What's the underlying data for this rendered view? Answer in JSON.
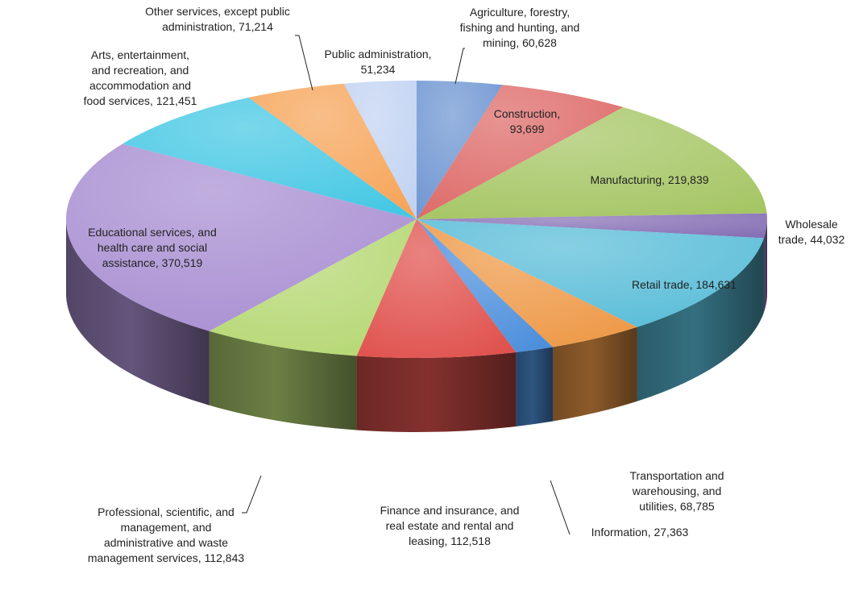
{
  "chart_data": {
    "type": "pie",
    "style": "3d",
    "title": "",
    "start_category": "Agriculture, forestry, fishing and hunting, and mining",
    "direction": "clockwise",
    "slices": [
      {
        "category": "Agriculture, forestry, fishing and hunting, and mining",
        "value": 60628,
        "label_lines": [
          "Agriculture, forestry,",
          "fishing and hunting, and",
          "mining, 60,628"
        ],
        "color": "#6f96d2"
      },
      {
        "category": "Construction",
        "value": 93699,
        "label_lines": [
          "Construction,",
          "93,699"
        ],
        "color": "#dd6a68"
      },
      {
        "category": "Manufacturing",
        "value": 219839,
        "label_lines": [
          "Manufacturing, 219,839"
        ],
        "color": "#a6c665"
      },
      {
        "category": "Wholesale trade",
        "value": 44032,
        "label_lines": [
          "Wholesale",
          "trade, 44,032"
        ],
        "color": "#8670b5"
      },
      {
        "category": "Retail trade",
        "value": 184631,
        "label_lines": [
          "Retail trade, 184,631"
        ],
        "color": "#59bdd8"
      },
      {
        "category": "Transportation and warehousing, and utilities",
        "value": 68785,
        "label_lines": [
          "Transportation and",
          "warehousing, and",
          "utilities, 68,785"
        ],
        "color": "#ee9947"
      },
      {
        "category": "Information",
        "value": 27363,
        "label_lines": [
          "Information, 27,363"
        ],
        "color": "#4d8fdc"
      },
      {
        "category": "Finance and insurance, and real estate and rental and leasing",
        "value": 112518,
        "label_lines": [
          "Finance and insurance, and",
          "real estate and rental and",
          "leasing, 112,518"
        ],
        "color": "#e0524e"
      },
      {
        "category": "Professional, scientific, and management, and administrative and waste management services",
        "value": 112843,
        "label_lines": [
          "Professional, scientific, and",
          "management, and",
          "administrative and waste",
          "management services, 112,843"
        ],
        "color": "#b6d874"
      },
      {
        "category": "Educational services, and health care and social assistance",
        "value": 370519,
        "label_lines": [
          "Educational services, and",
          "health care and social",
          "assistance, 370,519"
        ],
        "color": "#a98fd2"
      },
      {
        "category": "Arts, entertainment, and recreation, and accommodation and food services",
        "value": 121451,
        "label_lines": [
          "Arts, entertainment,",
          "and recreation, and",
          "accommodation and",
          "food services, 121,451"
        ],
        "color": "#45c8e4"
      },
      {
        "category": "Other services, except public administration",
        "value": 71214,
        "label_lines": [
          "Other services, except public",
          "administration, 71,214"
        ],
        "color": "#f6a55a"
      },
      {
        "category": "Public administration",
        "value": 51234,
        "label_lines": [
          "Public administration,",
          "51,234"
        ],
        "color": "#c2d3f2"
      }
    ]
  }
}
